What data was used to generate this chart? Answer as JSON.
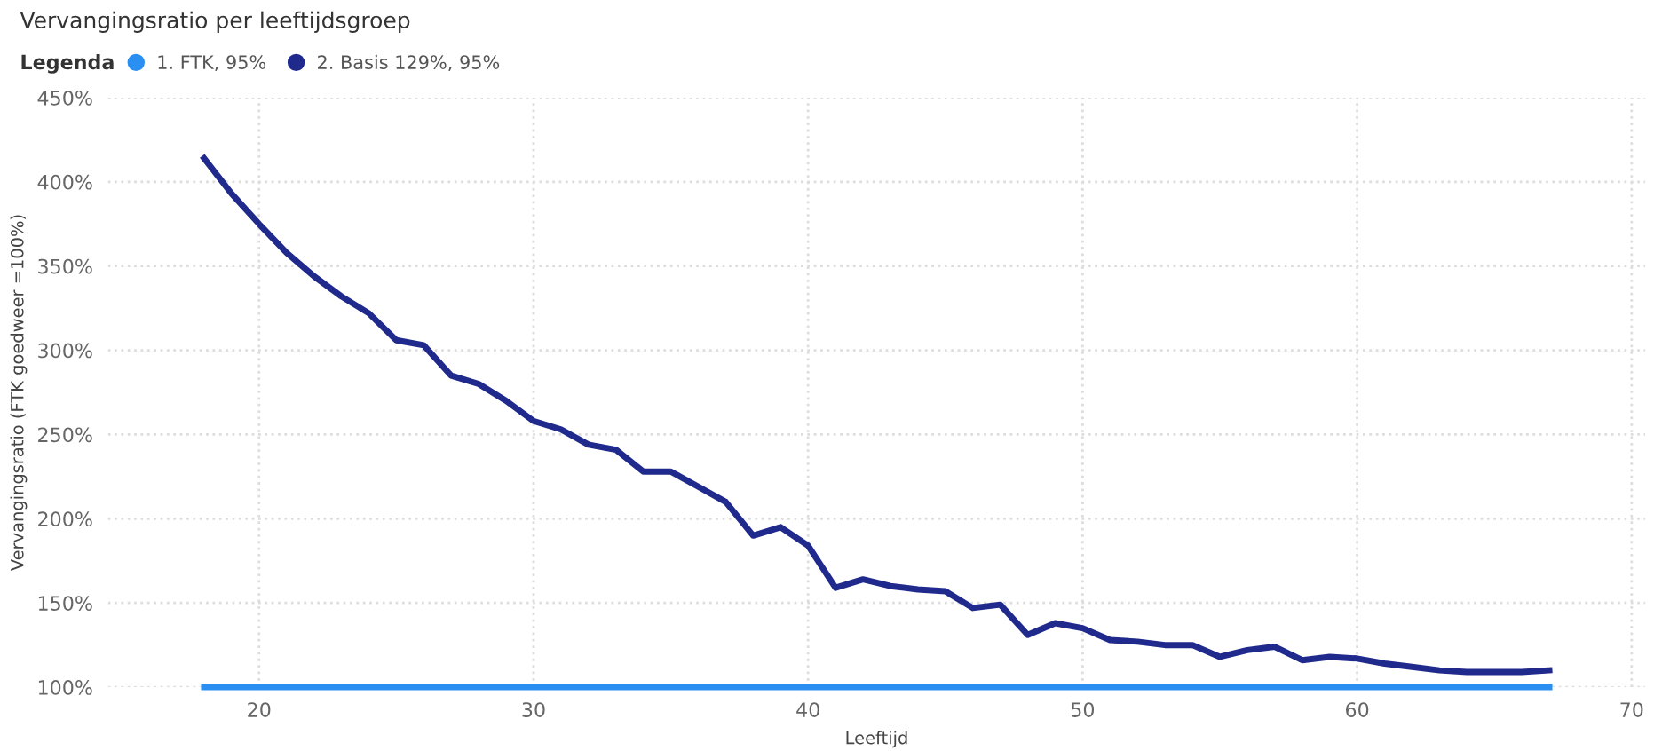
{
  "chart_data": {
    "type": "line",
    "title": "Vervangingsratio per leeftijdsgroep",
    "legend_title": "Legenda",
    "xlabel": "Leeftijd",
    "ylabel": "Vervangingsratio (FTK goedweer =100%)",
    "x": [
      18,
      19,
      20,
      21,
      22,
      23,
      24,
      25,
      26,
      27,
      28,
      29,
      30,
      31,
      32,
      33,
      34,
      35,
      36,
      37,
      38,
      39,
      40,
      41,
      42,
      43,
      44,
      45,
      46,
      47,
      48,
      49,
      50,
      51,
      52,
      53,
      54,
      55,
      56,
      57,
      58,
      59,
      60,
      61,
      62,
      63,
      64,
      65,
      66,
      67
    ],
    "series": [
      {
        "name": "1. FTK, 95%",
        "color": "#2a8ff0",
        "values": [
          100,
          100,
          100,
          100,
          100,
          100,
          100,
          100,
          100,
          100,
          100,
          100,
          100,
          100,
          100,
          100,
          100,
          100,
          100,
          100,
          100,
          100,
          100,
          100,
          100,
          100,
          100,
          100,
          100,
          100,
          100,
          100,
          100,
          100,
          100,
          100,
          100,
          100,
          100,
          100,
          100,
          100,
          100,
          100,
          100,
          100,
          100,
          100,
          100,
          100
        ]
      },
      {
        "name": "2. Basis 129%, 95%",
        "color": "#1f2a8c",
        "values": [
          414,
          393,
          375,
          358,
          344,
          332,
          322,
          306,
          303,
          285,
          280,
          270,
          258,
          253,
          244,
          241,
          228,
          228,
          219,
          210,
          190,
          195,
          184,
          159,
          164,
          160,
          158,
          157,
          147,
          149,
          131,
          138,
          135,
          128,
          127,
          125,
          125,
          118,
          122,
          124,
          116,
          118,
          117,
          114,
          112,
          110,
          109,
          109,
          109,
          110
        ]
      }
    ],
    "xlim": [
      14.5,
      70.5
    ],
    "xticks": [
      20,
      30,
      40,
      50,
      60,
      70
    ],
    "ylim": [
      100,
      450
    ],
    "yticks": [
      {
        "value": 100,
        "label": "100%"
      },
      {
        "value": 150,
        "label": "150%"
      },
      {
        "value": 200,
        "label": "200%"
      },
      {
        "value": 250,
        "label": "250%"
      },
      {
        "value": 300,
        "label": "300%"
      },
      {
        "value": 350,
        "label": "350%"
      },
      {
        "value": 400,
        "label": "400%"
      },
      {
        "value": 450,
        "label": "450%"
      }
    ],
    "grid": true,
    "legend": "top left",
    "marker": "none",
    "line_style": "solid"
  }
}
